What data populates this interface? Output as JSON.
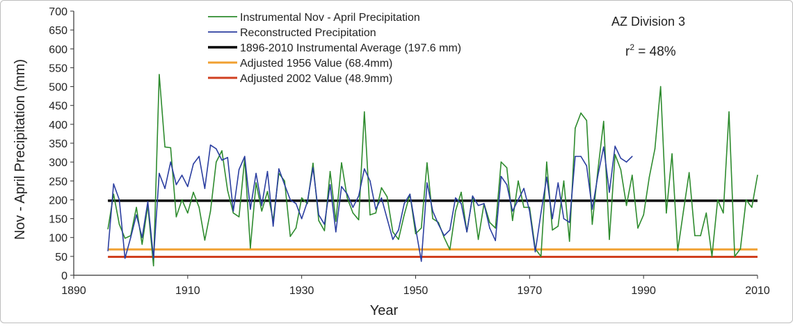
{
  "chart_data": {
    "type": "line",
    "xlabel": "Year",
    "ylabel": "Nov - April Precipitation (mm)",
    "xlim": [
      1890,
      2010
    ],
    "ylim": [
      0,
      700
    ],
    "x_ticks": [
      1890,
      1910,
      1930,
      1950,
      1970,
      1990,
      2010
    ],
    "y_ticks": [
      0,
      50,
      100,
      150,
      200,
      250,
      300,
      350,
      400,
      450,
      500,
      550,
      600,
      650,
      700
    ],
    "grid": false,
    "legend_position": "top-left",
    "annotations": {
      "division": "AZ Division 3",
      "r2_label": "r",
      "r2_sup": "2",
      "r2_value": " = 48%"
    },
    "series": [
      {
        "name": "Instrumental Nov - April Precipitation",
        "color": "#2e8b2e",
        "points": [
          [
            1896,
            123
          ],
          [
            1897,
            215
          ],
          [
            1898,
            135
          ],
          [
            1899,
            98
          ],
          [
            1900,
            105
          ],
          [
            1901,
            180
          ],
          [
            1902,
            82
          ],
          [
            1903,
            185
          ],
          [
            1904,
            25
          ],
          [
            1905,
            532
          ],
          [
            1906,
            340
          ],
          [
            1907,
            338
          ],
          [
            1908,
            155
          ],
          [
            1909,
            200
          ],
          [
            1910,
            165
          ],
          [
            1911,
            220
          ],
          [
            1912,
            180
          ],
          [
            1913,
            93
          ],
          [
            1914,
            170
          ],
          [
            1915,
            300
          ],
          [
            1916,
            330
          ],
          [
            1917,
            225
          ],
          [
            1918,
            165
          ],
          [
            1919,
            155
          ],
          [
            1920,
            310
          ],
          [
            1921,
            72
          ],
          [
            1922,
            245
          ],
          [
            1923,
            170
          ],
          [
            1924,
            222
          ],
          [
            1925,
            145
          ],
          [
            1926,
            270
          ],
          [
            1927,
            250
          ],
          [
            1928,
            103
          ],
          [
            1929,
            125
          ],
          [
            1930,
            205
          ],
          [
            1931,
            190
          ],
          [
            1932,
            297
          ],
          [
            1933,
            145
          ],
          [
            1934,
            118
          ],
          [
            1935,
            275
          ],
          [
            1936,
            143
          ],
          [
            1937,
            298
          ],
          [
            1938,
            205
          ],
          [
            1939,
            165
          ],
          [
            1940,
            147
          ],
          [
            1941,
            433
          ],
          [
            1942,
            160
          ],
          [
            1943,
            165
          ],
          [
            1944,
            232
          ],
          [
            1945,
            208
          ],
          [
            1946,
            115
          ],
          [
            1947,
            95
          ],
          [
            1948,
            160
          ],
          [
            1949,
            215
          ],
          [
            1950,
            110
          ],
          [
            1951,
            125
          ],
          [
            1952,
            298
          ],
          [
            1953,
            150
          ],
          [
            1954,
            140
          ],
          [
            1955,
            100
          ],
          [
            1956,
            68
          ],
          [
            1957,
            170
          ],
          [
            1958,
            220
          ],
          [
            1959,
            115
          ],
          [
            1960,
            210
          ],
          [
            1961,
            95
          ],
          [
            1962,
            190
          ],
          [
            1963,
            140
          ],
          [
            1964,
            125
          ],
          [
            1965,
            300
          ],
          [
            1966,
            285
          ],
          [
            1967,
            145
          ],
          [
            1968,
            250
          ],
          [
            1969,
            180
          ],
          [
            1970,
            180
          ],
          [
            1971,
            70
          ],
          [
            1972,
            50
          ],
          [
            1973,
            300
          ],
          [
            1974,
            120
          ],
          [
            1975,
            130
          ],
          [
            1976,
            250
          ],
          [
            1977,
            90
          ],
          [
            1978,
            390
          ],
          [
            1979,
            430
          ],
          [
            1980,
            410
          ],
          [
            1981,
            135
          ],
          [
            1982,
            280
          ],
          [
            1983,
            408
          ],
          [
            1984,
            95
          ],
          [
            1985,
            320
          ],
          [
            1986,
            280
          ],
          [
            1987,
            185
          ],
          [
            1988,
            265
          ],
          [
            1989,
            125
          ],
          [
            1990,
            160
          ],
          [
            1991,
            260
          ],
          [
            1992,
            335
          ],
          [
            1993,
            500
          ],
          [
            1994,
            165
          ],
          [
            1995,
            322
          ],
          [
            1996,
            65
          ],
          [
            1997,
            170
          ],
          [
            1998,
            272
          ],
          [
            1999,
            105
          ],
          [
            2000,
            105
          ],
          [
            2001,
            165
          ],
          [
            2002,
            50
          ],
          [
            2003,
            200
          ],
          [
            2004,
            165
          ],
          [
            2005,
            433
          ],
          [
            2006,
            50
          ],
          [
            2007,
            70
          ],
          [
            2008,
            200
          ],
          [
            2009,
            180
          ],
          [
            2010,
            265
          ]
        ]
      },
      {
        "name": "Reconstructed Precipitation",
        "color": "#2b3ea0",
        "points": [
          [
            1896,
            65
          ],
          [
            1897,
            242
          ],
          [
            1898,
            200
          ],
          [
            1899,
            45
          ],
          [
            1900,
            100
          ],
          [
            1901,
            160
          ],
          [
            1902,
            100
          ],
          [
            1903,
            195
          ],
          [
            1904,
            45
          ],
          [
            1905,
            270
          ],
          [
            1906,
            230
          ],
          [
            1907,
            300
          ],
          [
            1908,
            240
          ],
          [
            1909,
            265
          ],
          [
            1910,
            235
          ],
          [
            1911,
            295
          ],
          [
            1912,
            315
          ],
          [
            1913,
            230
          ],
          [
            1914,
            345
          ],
          [
            1915,
            335
          ],
          [
            1916,
            305
          ],
          [
            1917,
            312
          ],
          [
            1918,
            170
          ],
          [
            1919,
            280
          ],
          [
            1920,
            315
          ],
          [
            1921,
            175
          ],
          [
            1922,
            270
          ],
          [
            1923,
            185
          ],
          [
            1924,
            275
          ],
          [
            1925,
            130
          ],
          [
            1926,
            282
          ],
          [
            1927,
            240
          ],
          [
            1928,
            200
          ],
          [
            1929,
            190
          ],
          [
            1930,
            150
          ],
          [
            1931,
            195
          ],
          [
            1932,
            285
          ],
          [
            1933,
            160
          ],
          [
            1934,
            135
          ],
          [
            1935,
            240
          ],
          [
            1936,
            115
          ],
          [
            1937,
            235
          ],
          [
            1938,
            215
          ],
          [
            1939,
            180
          ],
          [
            1940,
            210
          ],
          [
            1941,
            282
          ],
          [
            1942,
            250
          ],
          [
            1943,
            175
          ],
          [
            1944,
            205
          ],
          [
            1945,
            150
          ],
          [
            1946,
            95
          ],
          [
            1947,
            120
          ],
          [
            1948,
            190
          ],
          [
            1949,
            215
          ],
          [
            1950,
            125
          ],
          [
            1951,
            37
          ],
          [
            1952,
            245
          ],
          [
            1953,
            170
          ],
          [
            1954,
            135
          ],
          [
            1955,
            105
          ],
          [
            1956,
            120
          ],
          [
            1957,
            205
          ],
          [
            1958,
            190
          ],
          [
            1959,
            115
          ],
          [
            1960,
            210
          ],
          [
            1961,
            185
          ],
          [
            1962,
            190
          ],
          [
            1963,
            125
          ],
          [
            1964,
            92
          ],
          [
            1965,
            262
          ],
          [
            1966,
            240
          ],
          [
            1967,
            170
          ],
          [
            1968,
            200
          ],
          [
            1969,
            230
          ],
          [
            1970,
            170
          ],
          [
            1971,
            62
          ],
          [
            1972,
            165
          ],
          [
            1973,
            260
          ],
          [
            1974,
            150
          ],
          [
            1975,
            245
          ],
          [
            1976,
            150
          ],
          [
            1977,
            140
          ],
          [
            1978,
            315
          ],
          [
            1979,
            315
          ],
          [
            1980,
            290
          ],
          [
            1981,
            175
          ],
          [
            1982,
            265
          ],
          [
            1983,
            340
          ],
          [
            1984,
            220
          ],
          [
            1985,
            342
          ],
          [
            1986,
            310
          ],
          [
            1987,
            300
          ],
          [
            1988,
            315
          ]
        ]
      }
    ],
    "reference_lines": [
      {
        "name": "1896-2010 Instrumental Average (197.6 mm)",
        "color": "#000000",
        "value": 197.6,
        "x_range": [
          1896,
          2010
        ]
      },
      {
        "name": "Adjusted 1956 Value (68.4mm)",
        "color": "#f0a030",
        "value": 68.4,
        "x_range": [
          1896,
          2010
        ]
      },
      {
        "name": "Adjusted 2002 Value (48.9mm)",
        "color": "#d04020",
        "value": 48.9,
        "x_range": [
          1896,
          2010
        ]
      }
    ]
  }
}
